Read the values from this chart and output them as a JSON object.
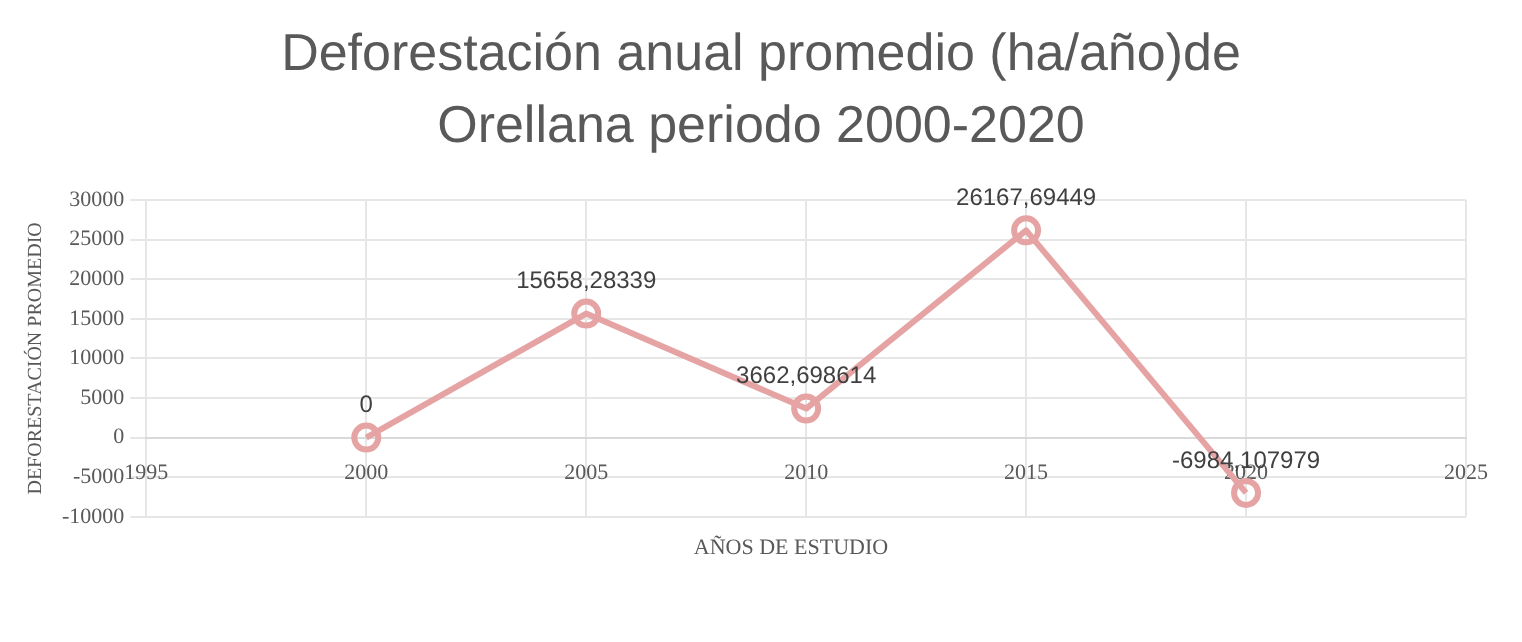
{
  "chart_data": {
    "type": "line",
    "title": "Deforestación anual promedio (ha/año)de Orellana periodo 2000-2020",
    "xlabel": "AÑOS DE ESTUDIO",
    "ylabel": "DEFORESTACIÓN PROMEDIO",
    "x": [
      2000,
      2005,
      2010,
      2015,
      2020
    ],
    "series": [
      {
        "color": "#e6a3a3",
        "values": [
          0,
          15658.28339,
          3662.698614,
          26167.69449,
          -6984.107979
        ],
        "value_labels": [
          "0",
          "15658,28339",
          "3662,698614",
          "26167,69449",
          "-6984,107979"
        ]
      }
    ],
    "xlim": [
      1995,
      2025
    ],
    "xticks": [
      1995,
      2000,
      2005,
      2010,
      2015,
      2020,
      2025
    ],
    "ylim": [
      -10000,
      30000
    ],
    "yticks": [
      -10000,
      -5000,
      0,
      5000,
      10000,
      15000,
      20000,
      25000,
      30000
    ],
    "grid": true,
    "marker": "circle",
    "line_style": "solid"
  }
}
